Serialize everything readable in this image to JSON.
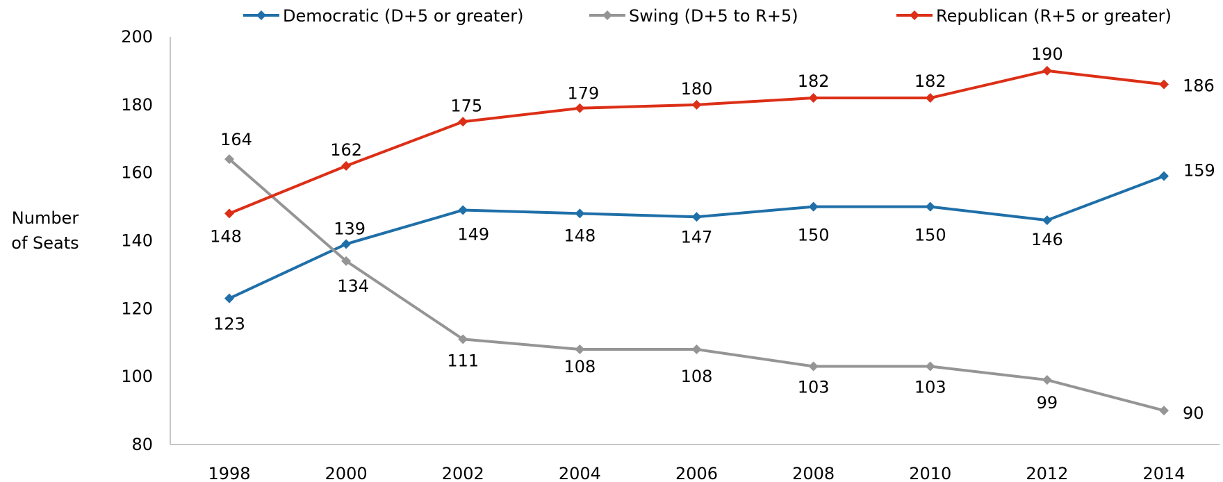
{
  "chart_data": {
    "type": "line",
    "title": "",
    "xlabel": "",
    "ylabel": [
      "Number",
      "of Seats"
    ],
    "x": [
      "1998",
      "2000",
      "2002",
      "2004",
      "2006",
      "2008",
      "2010",
      "2012",
      "2014"
    ],
    "ylim": [
      80,
      200
    ],
    "yticks": [
      "80",
      "100",
      "120",
      "140",
      "160",
      "180",
      "200"
    ],
    "grid": false,
    "legend_position": "top",
    "series": [
      {
        "name": "Democratic (D+5 or greater)",
        "color": "#1f6fa8",
        "values": [
          123,
          139,
          149,
          148,
          147,
          150,
          150,
          146,
          159
        ]
      },
      {
        "name": "Swing (D+5 to R+5)",
        "color": "#959595",
        "values": [
          164,
          134,
          111,
          108,
          108,
          103,
          103,
          99,
          90
        ]
      },
      {
        "name": "Republican (R+5 or greater)",
        "color": "#dc2f17",
        "values": [
          148,
          162,
          175,
          179,
          180,
          182,
          182,
          190,
          186
        ]
      }
    ]
  }
}
